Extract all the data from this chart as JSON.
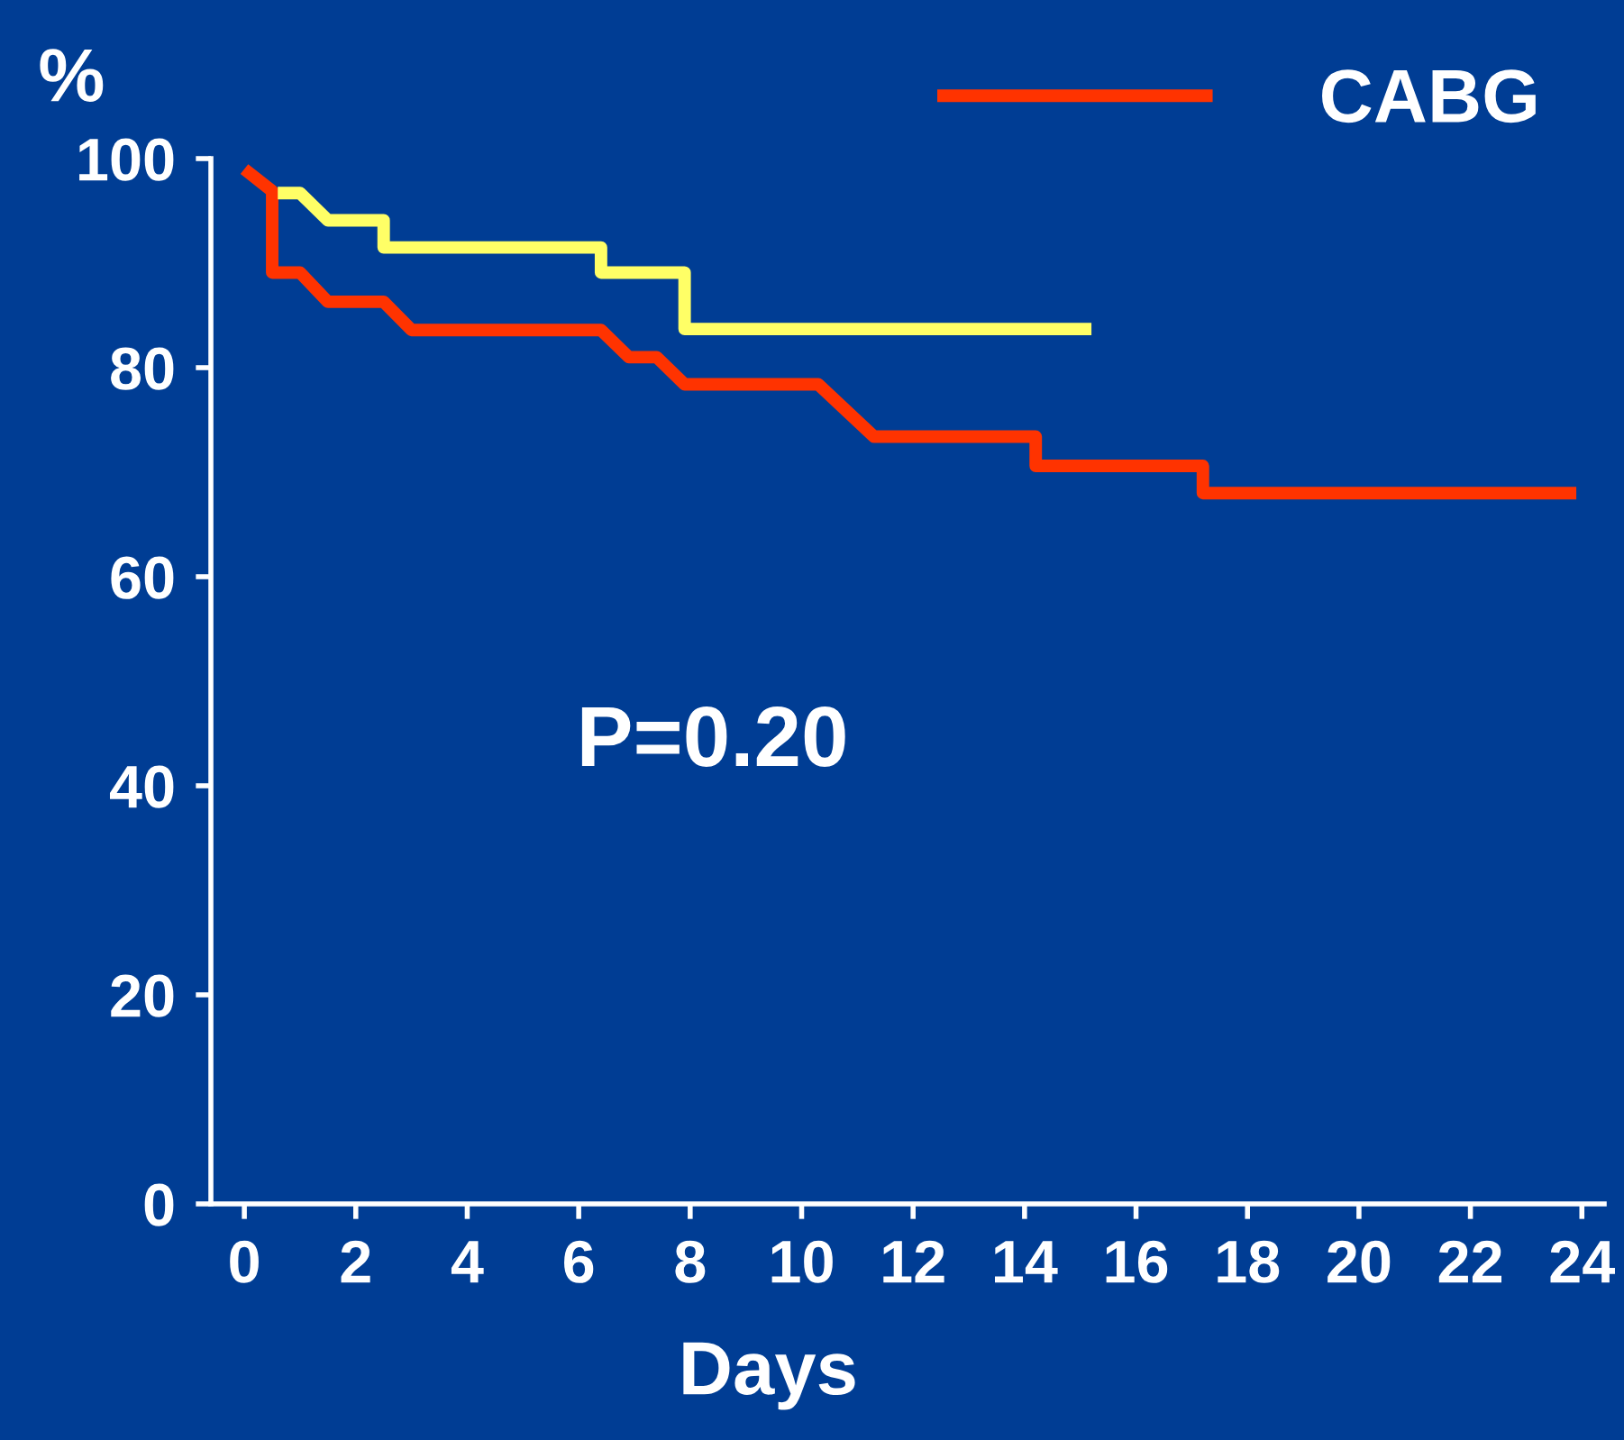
{
  "chart_data": {
    "type": "line",
    "ylabel": "%",
    "xlabel": "Days",
    "annotations": [
      "P=0.20"
    ],
    "xlim": [
      -0.6,
      24.4
    ],
    "xticks": [
      0,
      2,
      4,
      6,
      8,
      10,
      12,
      14,
      16,
      18,
      20,
      22,
      24
    ],
    "ylim": [
      0,
      100
    ],
    "yticks": [
      0,
      20,
      40,
      60,
      80,
      100
    ],
    "grid": false,
    "legend": "top right",
    "marker": "none",
    "line_style": "solid",
    "series": [
      {
        "name": "CABG",
        "color": "#ff3300",
        "x": [
          0,
          0.5,
          0.5,
          1.0,
          1.5,
          2.5,
          3.0,
          6.4,
          6.9,
          7.4,
          7.9,
          10.3,
          11.3,
          14.2,
          14.2,
          17.2,
          17.2,
          23.9
        ],
        "values": [
          99,
          96.9,
          89.1,
          89.1,
          86.3,
          86.3,
          83.6,
          83.6,
          81.0,
          81.0,
          78.4,
          78.4,
          73.4,
          73.4,
          70.6,
          70.6,
          68.0,
          68.0
        ]
      },
      {
        "color": "#ffff66",
        "x": [
          0.6,
          1.0,
          1.5,
          2.5,
          2.5,
          6.4,
          6.4,
          7.9,
          7.9,
          15.2
        ],
        "values": [
          96.7,
          96.7,
          94.1,
          94.1,
          91.5,
          91.5,
          89.1,
          89.1,
          83.7,
          83.7
        ]
      }
    ]
  }
}
